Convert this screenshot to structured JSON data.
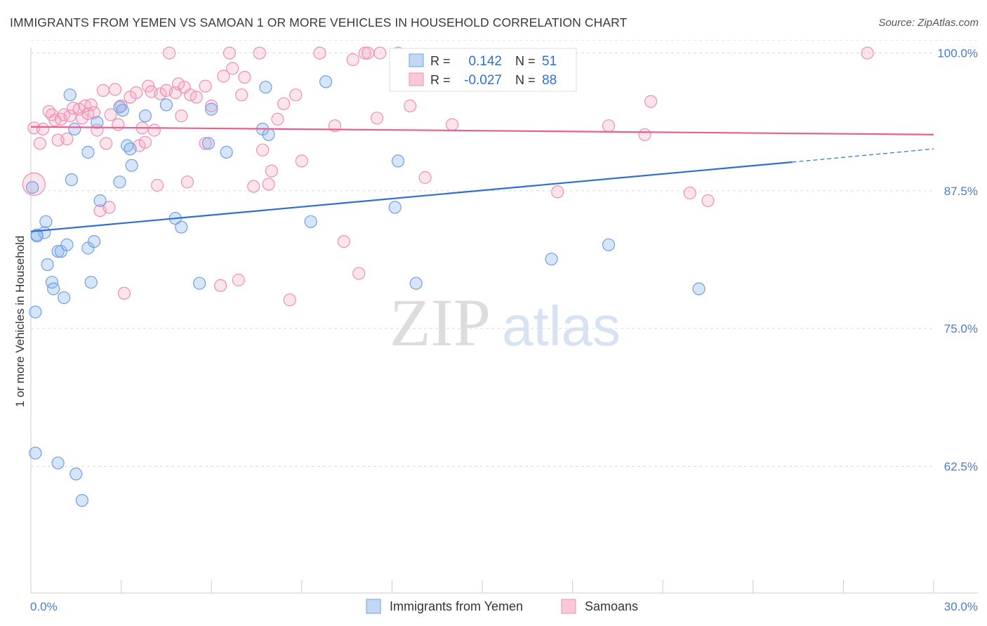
{
  "title": "IMMIGRANTS FROM YEMEN VS SAMOAN 1 OR MORE VEHICLES IN HOUSEHOLD CORRELATION CHART",
  "source": "Source: ZipAtlas.com",
  "watermark": {
    "zip": "ZIP",
    "atlas": "atlas"
  },
  "chart_data": {
    "type": "scatter",
    "title": "IMMIGRANTS FROM YEMEN VS SAMOAN 1 OR MORE VEHICLES IN HOUSEHOLD CORRELATION CHART",
    "xlabel": "",
    "ylabel": "1 or more Vehicles in Household",
    "xlim": [
      0,
      30
    ],
    "ylim": [
      51.0,
      101.5
    ],
    "x_tick_labels": [
      "0.0%",
      "30.0%"
    ],
    "y_ticks": [
      {
        "value": 100.0,
        "label": "100.0%"
      },
      {
        "value": 87.5,
        "label": "87.5%"
      },
      {
        "value": 75.0,
        "label": "75.0%"
      },
      {
        "value": 62.5,
        "label": "62.5%"
      }
    ],
    "grid": true,
    "legend_position": "top-center",
    "colors": {
      "yemen": "#6fa0e6",
      "yemen_line": "#2f6fd0",
      "samoan": "#f08fb0",
      "samoan_line": "#e8608e"
    },
    "series": [
      {
        "name": "Immigrants from Yemen",
        "key": "yemen",
        "R": "0.142",
        "N": "51",
        "trend": {
          "x0": 0,
          "y0": 83.8,
          "x1": 25.3,
          "y1": 90.1,
          "dash_to_x": 30,
          "dash_to_y": 91.3
        },
        "points": [
          [
            0.05,
            87.8
          ],
          [
            0.2,
            83.5
          ],
          [
            0.45,
            83.7
          ],
          [
            0.5,
            84.7
          ],
          [
            0.55,
            80.8
          ],
          [
            0.7,
            79.2
          ],
          [
            0.75,
            78.6
          ],
          [
            0.9,
            82.0
          ],
          [
            1.0,
            82.0
          ],
          [
            1.1,
            77.8
          ],
          [
            1.2,
            82.6
          ],
          [
            1.3,
            96.2
          ],
          [
            1.35,
            88.5
          ],
          [
            1.45,
            93.1
          ],
          [
            1.9,
            82.3
          ],
          [
            1.9,
            91.0
          ],
          [
            2.0,
            79.2
          ],
          [
            2.1,
            82.9
          ],
          [
            2.2,
            93.7
          ],
          [
            2.3,
            86.6
          ],
          [
            2.95,
            95.1
          ],
          [
            2.95,
            88.3
          ],
          [
            3.05,
            94.8
          ],
          [
            3.2,
            91.6
          ],
          [
            3.3,
            91.3
          ],
          [
            3.35,
            89.8
          ],
          [
            3.8,
            94.3
          ],
          [
            4.5,
            95.3
          ],
          [
            4.8,
            85.0
          ],
          [
            5.0,
            84.2
          ],
          [
            5.6,
            79.1
          ],
          [
            5.9,
            91.8
          ],
          [
            6.0,
            94.9
          ],
          [
            6.5,
            91.0
          ],
          [
            7.7,
            93.1
          ],
          [
            7.8,
            96.9
          ],
          [
            7.9,
            92.6
          ],
          [
            9.3,
            84.7
          ],
          [
            9.8,
            97.4
          ],
          [
            12.1,
            86.0
          ],
          [
            12.2,
            90.2
          ],
          [
            12.8,
            79.1
          ],
          [
            17.3,
            81.3
          ],
          [
            19.2,
            82.6
          ],
          [
            22.2,
            78.6
          ],
          [
            0.15,
            76.5
          ],
          [
            0.15,
            63.7
          ],
          [
            0.9,
            62.8
          ],
          [
            1.5,
            61.8
          ],
          [
            1.7,
            59.4
          ],
          [
            0.2,
            83.4
          ]
        ]
      },
      {
        "name": "Samoans",
        "key": "samoan",
        "R": "-0.027",
        "N": "88",
        "trend": {
          "x0": 0,
          "y0": 93.3,
          "x1": 30,
          "y1": 92.6
        },
        "points": [
          [
            0.1,
            93.2
          ],
          [
            0.3,
            91.8
          ],
          [
            0.4,
            93.1
          ],
          [
            0.6,
            94.7
          ],
          [
            0.7,
            94.4
          ],
          [
            0.8,
            93.9
          ],
          [
            0.9,
            92.1
          ],
          [
            1.0,
            94.0
          ],
          [
            1.1,
            94.4
          ],
          [
            1.2,
            92.2
          ],
          [
            1.3,
            94.3
          ],
          [
            1.4,
            95.0
          ],
          [
            1.6,
            94.9
          ],
          [
            1.7,
            94.1
          ],
          [
            1.8,
            95.2
          ],
          [
            1.9,
            94.5
          ],
          [
            2.0,
            95.3
          ],
          [
            2.1,
            94.6
          ],
          [
            2.2,
            93.0
          ],
          [
            2.3,
            85.7
          ],
          [
            2.4,
            96.6
          ],
          [
            2.5,
            91.8
          ],
          [
            2.65,
            94.4
          ],
          [
            2.8,
            96.7
          ],
          [
            2.9,
            93.5
          ],
          [
            3.0,
            95.2
          ],
          [
            3.1,
            78.2
          ],
          [
            3.3,
            96.0
          ],
          [
            3.5,
            96.4
          ],
          [
            3.6,
            91.6
          ],
          [
            3.7,
            93.2
          ],
          [
            3.8,
            91.9
          ],
          [
            3.9,
            97.0
          ],
          [
            4.0,
            96.5
          ],
          [
            4.1,
            93.0
          ],
          [
            4.2,
            88.0
          ],
          [
            4.3,
            96.3
          ],
          [
            4.5,
            96.6
          ],
          [
            4.6,
            100.0
          ],
          [
            4.8,
            96.4
          ],
          [
            4.9,
            97.2
          ],
          [
            5.0,
            94.3
          ],
          [
            5.1,
            96.9
          ],
          [
            5.2,
            88.3
          ],
          [
            5.3,
            96.2
          ],
          [
            5.5,
            96.0
          ],
          [
            5.8,
            91.8
          ],
          [
            6.0,
            95.2
          ],
          [
            6.3,
            78.9
          ],
          [
            6.4,
            97.9
          ],
          [
            6.6,
            100.0
          ],
          [
            6.7,
            98.6
          ],
          [
            6.9,
            79.4
          ],
          [
            7.0,
            96.2
          ],
          [
            7.1,
            97.8
          ],
          [
            7.4,
            87.9
          ],
          [
            7.6,
            100.0
          ],
          [
            7.7,
            91.2
          ],
          [
            7.9,
            88.1
          ],
          [
            8.0,
            89.3
          ],
          [
            8.2,
            94.0
          ],
          [
            8.4,
            95.4
          ],
          [
            8.6,
            77.6
          ],
          [
            8.8,
            96.2
          ],
          [
            9.0,
            90.2
          ],
          [
            9.6,
            100.0
          ],
          [
            10.1,
            93.4
          ],
          [
            10.4,
            82.9
          ],
          [
            10.7,
            99.4
          ],
          [
            10.9,
            80.0
          ],
          [
            11.1,
            100.0
          ],
          [
            11.2,
            100.0
          ],
          [
            11.5,
            94.1
          ],
          [
            11.6,
            100.0
          ],
          [
            12.2,
            100.0
          ],
          [
            12.6,
            95.2
          ],
          [
            13.1,
            88.7
          ],
          [
            14.0,
            93.5
          ],
          [
            17.5,
            87.4
          ],
          [
            19.2,
            93.4
          ],
          [
            20.4,
            92.6
          ],
          [
            20.6,
            95.6
          ],
          [
            21.9,
            87.3
          ],
          [
            22.5,
            86.6
          ],
          [
            27.8,
            100.0
          ],
          [
            5.8,
            97.0
          ],
          [
            2.6,
            86.0
          ],
          [
            0.1,
            88.1
          ]
        ]
      }
    ]
  },
  "legend": {
    "r_label": "R =",
    "n_label": "N ="
  },
  "bottom_legend": [
    "Immigrants from Yemen",
    "Samoans"
  ]
}
